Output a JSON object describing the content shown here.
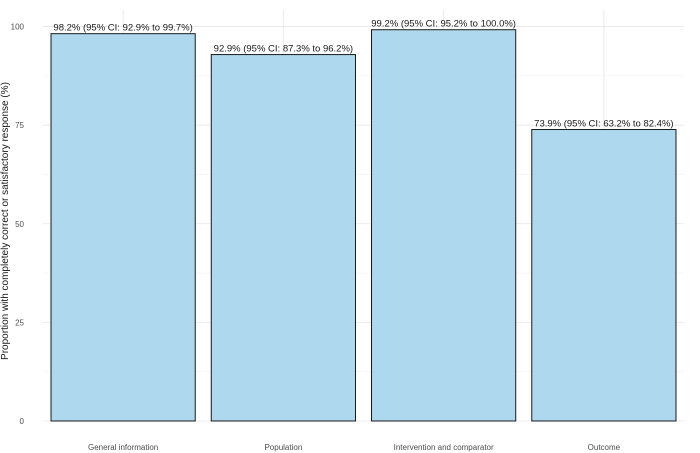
{
  "chart_data": {
    "type": "bar",
    "categories": [
      "General information",
      "Population",
      "Intervention and comparator",
      "Outcome"
    ],
    "values": [
      98.2,
      92.9,
      99.2,
      73.9
    ],
    "data_labels": [
      "98.2% (95% CI: 92.9% to 99.7%)",
      "92.9% (95% CI: 87.3% to 96.2%)",
      "99.2% (95% CI: 95.2% to 100.0%)",
      "73.9% (95% CI: 63.2% to 82.4%)"
    ],
    "ci_low": [
      92.9,
      87.3,
      95.2,
      63.2
    ],
    "ci_high": [
      99.7,
      96.2,
      100.0,
      82.4
    ],
    "title": "",
    "xlabel": "",
    "ylabel": "Proportion with completely correct or satisfactory response (%)",
    "ylim": [
      0,
      100
    ],
    "yticks": [
      0,
      25,
      50,
      75,
      100
    ],
    "grid": true,
    "legend": "none",
    "colors": {
      "bar_fill": "#add8ee",
      "bar_stroke": "#1a1a1a"
    }
  }
}
